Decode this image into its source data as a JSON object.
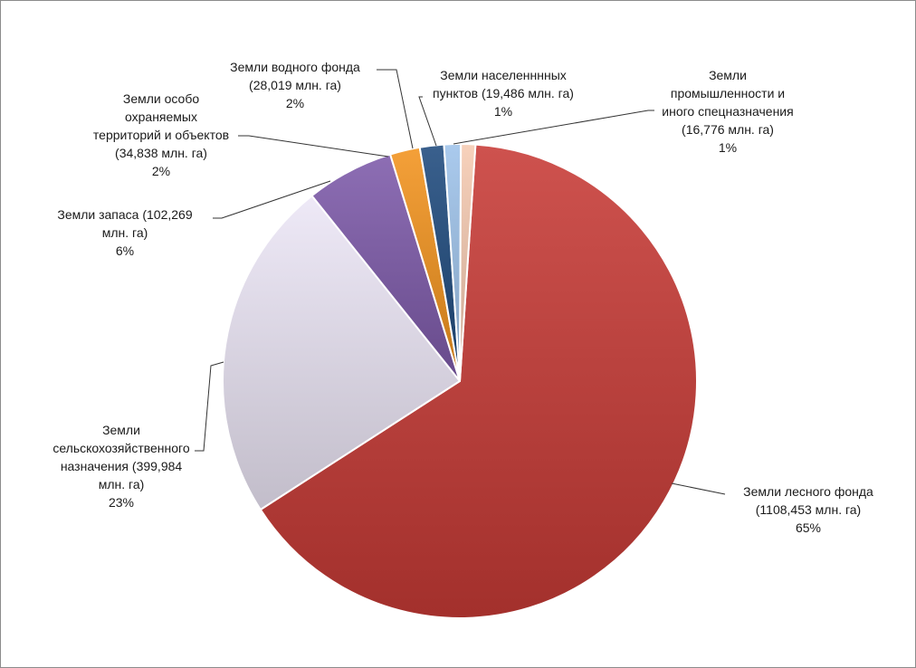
{
  "chart_data": {
    "type": "pie",
    "title": "",
    "slices": [
      {
        "label": "Земли лесного фонда (1108,453 млн. га) 65%",
        "name": "Земли лесного фонда",
        "value": 1108.453,
        "percent": "65%",
        "color": "#c73a36"
      },
      {
        "label": "Земли сельскохозяйственного назначения (399,984 млн. га) 23%",
        "name": "Земли сельскохозяйственного назначения",
        "value": 399.984,
        "percent": "23%",
        "color": "#ece6f6"
      },
      {
        "label": "Земли запаса (102,269 млн. га) 6%",
        "name": "Земли запаса",
        "value": 102.269,
        "percent": "6%",
        "color": "#7d5aaa"
      },
      {
        "label": "Земли особо охраняемых территорий и объектов (34,838 млн. га) 2%",
        "name": "Земли особо охраняемых территорий и объектов",
        "value": 34.838,
        "percent": "2%",
        "color": "#f2931e"
      },
      {
        "label": "Земли водного фонда (28,019 млн. га) 2%",
        "name": "Земли водного фонда",
        "value": 28.019,
        "percent": "2%",
        "color": "#1f4a7e"
      },
      {
        "label": "Земли населенннных пунктов (19,486 млн. га) 1%",
        "name": "Земли населенннных пунктов",
        "value": 19.486,
        "percent": "1%",
        "color": "#9ec3ea"
      },
      {
        "label": "Земли промышленности и иного спецназначения (16,776 млн. га) 1%",
        "name": "Земли промышленности и иного спецназначения",
        "value": 16.776,
        "percent": "1%",
        "color": "#f6cbb2"
      }
    ],
    "labels": {
      "forest": [
        "Земли лесного фонда",
        "(1108,453 млн. га)",
        "65%"
      ],
      "agri": [
        "Земли",
        "сельскохозяйственного",
        "назначения (399,984",
        "млн. га)",
        "23%"
      ],
      "reserve": [
        "Земли запаса (102,269",
        "млн. га)",
        "6%"
      ],
      "protected": [
        "Земли особо",
        "охраняемых",
        "территорий и объектов",
        "(34,838 млн. га)",
        "2%"
      ],
      "water": [
        "Земли водного фонда",
        "(28,019 млн. га)",
        "2%"
      ],
      "settlements": [
        "Земли населенннных",
        "пунктов (19,486 млн. га)",
        "1%"
      ],
      "industry": [
        "Земли",
        "промышленности и",
        "иного спецназначения",
        "(16,776 млн. га)",
        "1%"
      ]
    },
    "legend": "none"
  }
}
